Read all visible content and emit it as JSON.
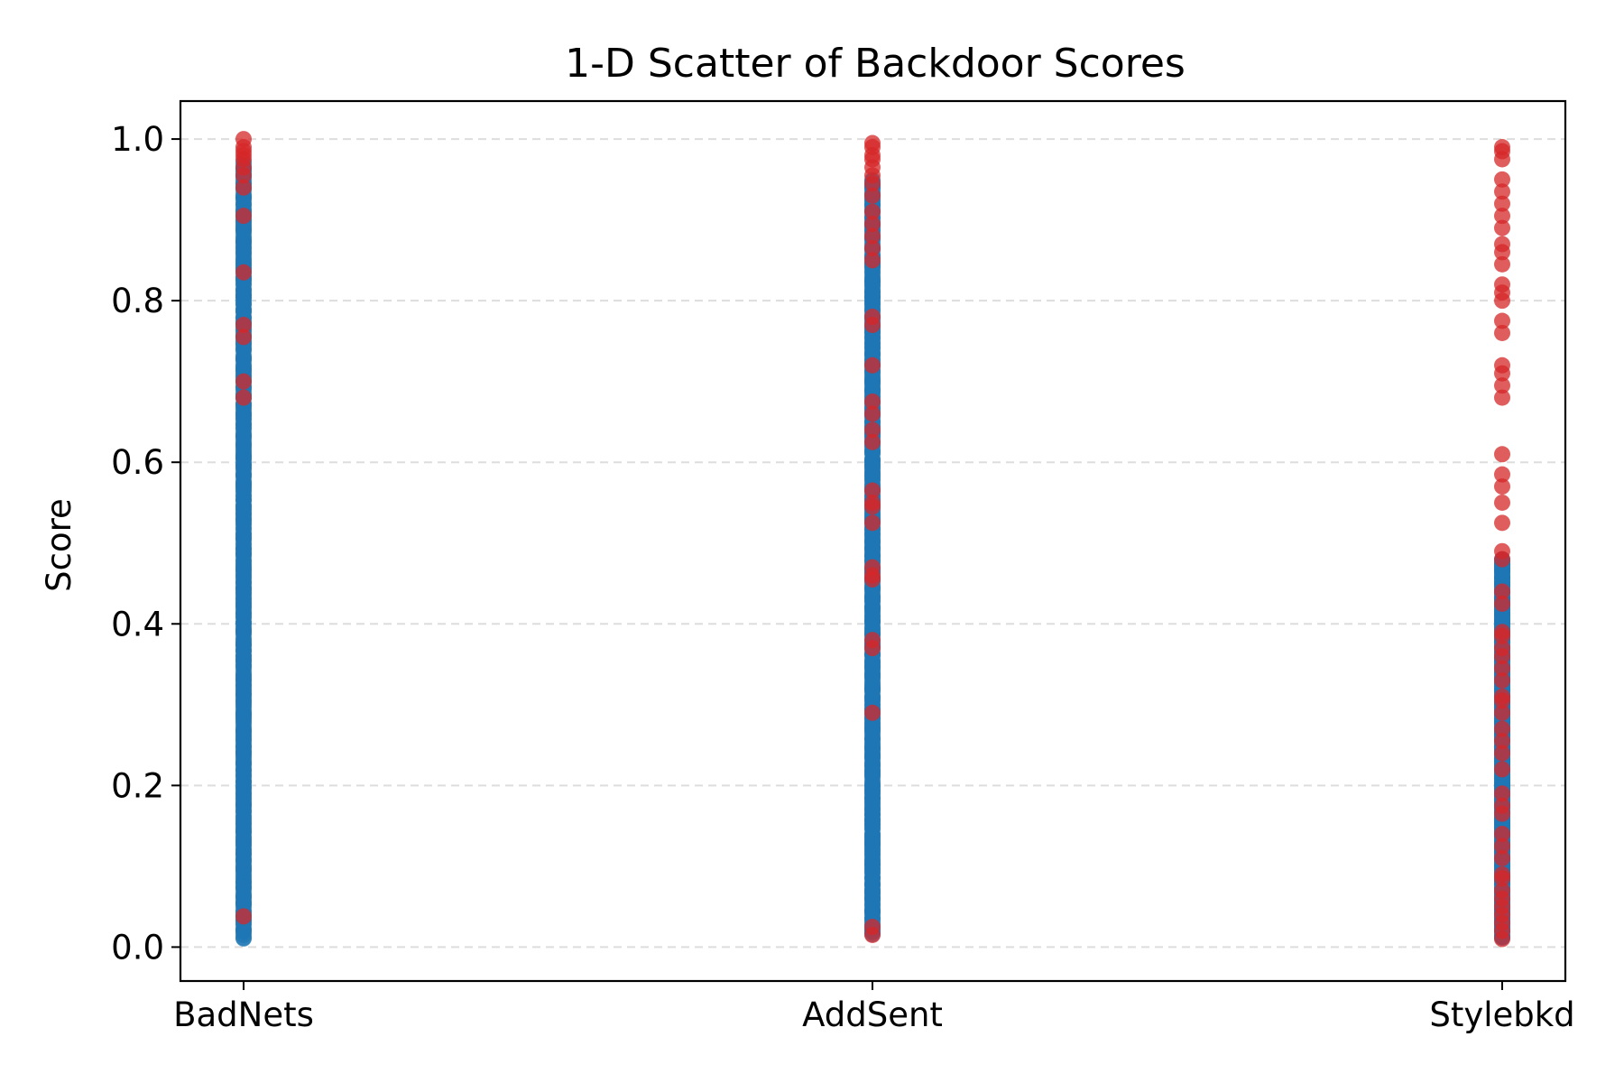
{
  "chart_data": {
    "type": "scatter",
    "title": "1-D Scatter of Backdoor Scores",
    "xlabel": "",
    "ylabel": "Score",
    "categories": [
      "BadNets",
      "AddSent",
      "Stylebkd"
    ],
    "ylim": [
      -0.042,
      1.047
    ],
    "yticks": [
      0.0,
      0.2,
      0.4,
      0.6,
      0.8,
      1.0
    ],
    "ytick_labels": [
      "0.0",
      "0.2",
      "0.4",
      "0.6",
      "0.8",
      "1.0"
    ],
    "grid": "y, dashed",
    "colors": {
      "clean": "#1f77b4",
      "poisoned": "#d62728",
      "grid": "#dddddd"
    },
    "groups": [
      {
        "category": "BadNets",
        "clean": {
          "range": [
            0.01,
            0.97
          ]
        },
        "poisoned": [
          1.0,
          0.99,
          0.985,
          0.98,
          0.975,
          0.965,
          0.955,
          0.94,
          0.905,
          0.835,
          0.77,
          0.755,
          0.7,
          0.68,
          0.038
        ]
      },
      {
        "category": "AddSent",
        "clean": {
          "range": [
            0.015,
            0.95
          ]
        },
        "poisoned": [
          0.995,
          0.99,
          0.98,
          0.975,
          0.965,
          0.955,
          0.945,
          0.93,
          0.91,
          0.895,
          0.88,
          0.865,
          0.85,
          0.78,
          0.77,
          0.72,
          0.675,
          0.66,
          0.64,
          0.625,
          0.565,
          0.55,
          0.545,
          0.525,
          0.47,
          0.46,
          0.455,
          0.38,
          0.37,
          0.29,
          0.025,
          0.015
        ]
      },
      {
        "category": "Stylebkd",
        "clean": {
          "range": [
            0.01,
            0.48
          ]
        },
        "poisoned": [
          0.99,
          0.985,
          0.975,
          0.95,
          0.935,
          0.92,
          0.905,
          0.89,
          0.87,
          0.86,
          0.845,
          0.82,
          0.81,
          0.8,
          0.775,
          0.76,
          0.72,
          0.71,
          0.695,
          0.68,
          0.61,
          0.585,
          0.57,
          0.55,
          0.525,
          0.49,
          0.48,
          0.44,
          0.425,
          0.39,
          0.385,
          0.37,
          0.36,
          0.345,
          0.33,
          0.31,
          0.305,
          0.29,
          0.27,
          0.255,
          0.24,
          0.22,
          0.19,
          0.175,
          0.165,
          0.14,
          0.125,
          0.11,
          0.09,
          0.085,
          0.07,
          0.06,
          0.05,
          0.04,
          0.03,
          0.02,
          0.01
        ]
      }
    ]
  }
}
